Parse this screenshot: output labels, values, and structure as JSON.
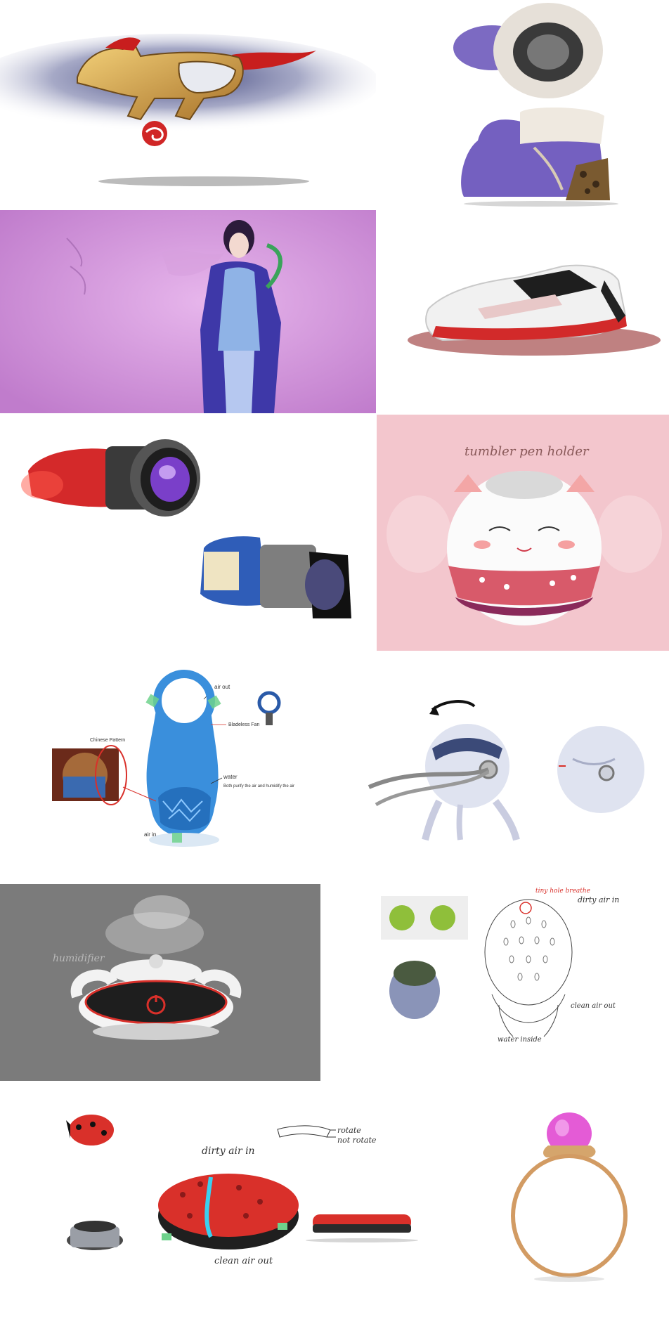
{
  "panels": {
    "pen_holder": {
      "caption": "tumbler pen holder"
    },
    "purifier_concept": {
      "air_out": "air out",
      "fan_label": "Bladeless Fan",
      "pattern_label": "Chinese Pattern",
      "water_label": "water",
      "water_desc": "Both purify the air and humidify the air",
      "air_in": "air in"
    },
    "humidifier": {
      "caption": "humidifier"
    },
    "cactus_sketch": {
      "tiny_hole": "tiny hole breathe",
      "dirty_air": "dirty air in",
      "clean_air": "clean air out",
      "water_inside": "water inside"
    },
    "ladybug": {
      "dirty_air": "dirty air in",
      "clean_air": "clean air out",
      "rotate": "rotate",
      "not_rotate": "not rotate"
    }
  },
  "colors": {
    "purple_bg": "#c98fd4",
    "pink_bg": "#f3c6cd",
    "gray_bg": "#7b7b7b",
    "red": "#d9302a",
    "blue": "#3a8fdc"
  }
}
